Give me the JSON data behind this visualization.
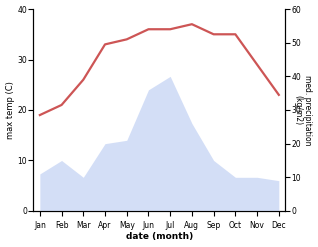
{
  "months": [
    "Jan",
    "Feb",
    "Mar",
    "Apr",
    "May",
    "Jun",
    "Jul",
    "Aug",
    "Sep",
    "Oct",
    "Nov",
    "Dec"
  ],
  "temp": [
    19,
    21,
    26,
    33,
    34,
    36,
    36,
    37,
    35,
    35,
    29,
    23
  ],
  "precip": [
    11,
    15,
    10,
    20,
    21,
    36,
    40,
    26,
    15,
    10,
    10,
    9
  ],
  "temp_color": "#cd5555",
  "precip_color": "#b0c4f0",
  "precip_alpha": 0.55,
  "xlabel": "date (month)",
  "ylabel_left": "max temp (C)",
  "ylabel_right": "med. precipitation\n(kg/m2)",
  "ylim_left": [
    0,
    40
  ],
  "ylim_right": [
    0,
    60
  ],
  "yticks_left": [
    0,
    10,
    20,
    30,
    40
  ],
  "yticks_right": [
    0,
    10,
    20,
    30,
    40,
    50,
    60
  ],
  "bg_color": "#ffffff",
  "line_width": 1.6,
  "figsize": [
    3.18,
    2.47
  ],
  "dpi": 100
}
